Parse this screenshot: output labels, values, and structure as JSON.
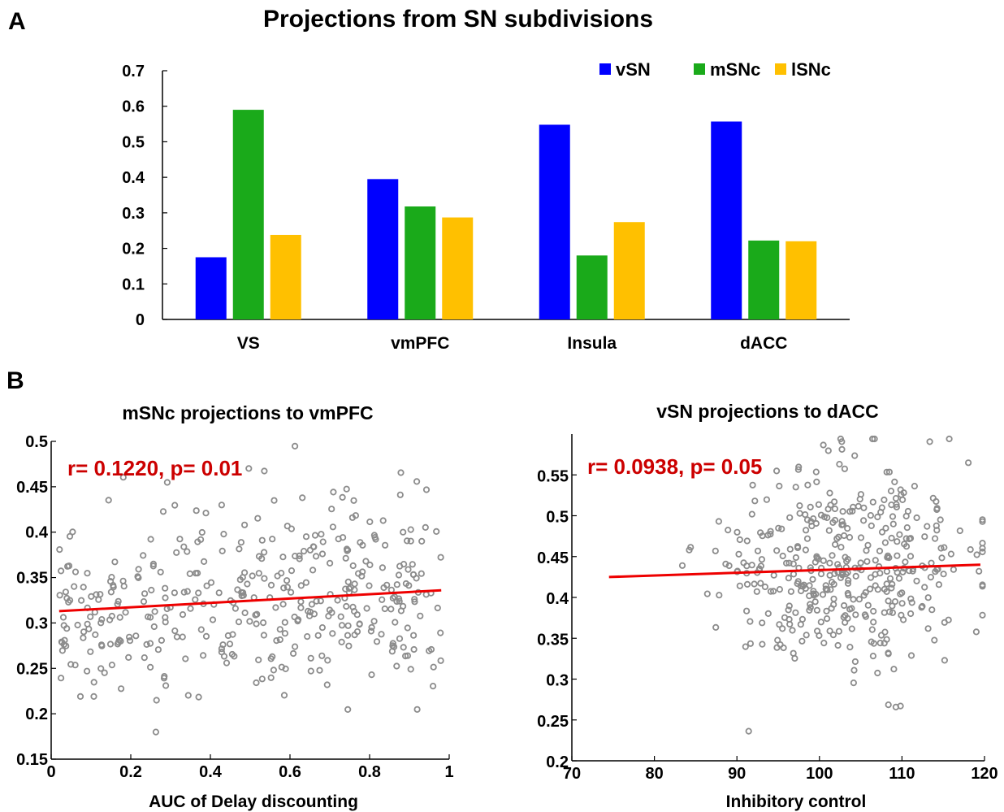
{
  "panel_labels": {
    "a": "A",
    "b": "B"
  },
  "colors": {
    "vSN": "#0000ff",
    "mSNc": "#1aaa1a",
    "lSNc": "#ffc000",
    "points": "#8c8c8c",
    "fit": "#ee0000",
    "stat": "#cc0000"
  },
  "chart_data": [
    {
      "type": "bar",
      "title": "Projections from SN subdivisions",
      "categories": [
        "VS",
        "vmPFC",
        "Insula",
        "dACC"
      ],
      "series": [
        {
          "name": "vSN",
          "values": [
            0.175,
            0.395,
            0.548,
            0.557
          ]
        },
        {
          "name": "mSNc",
          "values": [
            0.59,
            0.318,
            0.18,
            0.222
          ]
        },
        {
          "name": "lSNc",
          "values": [
            0.238,
            0.287,
            0.274,
            0.22
          ]
        }
      ],
      "ylim": [
        0,
        0.7
      ],
      "yticks": [
        "0",
        "0.1",
        "0.2",
        "0.3",
        "0.4",
        "0.5",
        "0.6",
        "0.7"
      ],
      "legend": "top-right",
      "legend_labels": [
        "vSN",
        "mSNc",
        "lSNc"
      ],
      "xlabel": "",
      "ylabel": ""
    },
    {
      "type": "scatter",
      "title": "mSNc projections to vmPFC",
      "xlabel": "AUC of Delay discounting",
      "ylabel": "",
      "xlim": [
        0,
        1
      ],
      "ylim": [
        0.15,
        0.5
      ],
      "xticks": [
        "0",
        "0.2",
        "0.4",
        "0.6",
        "0.8",
        "1"
      ],
      "yticks": [
        "0.15",
        "0.2",
        "0.25",
        "0.3",
        "0.35",
        "0.4",
        "0.45",
        "0.5"
      ],
      "annotation": "r= 0.1220, p= 0.01",
      "fit_line": {
        "x": [
          0.02,
          0.98
        ],
        "y": [
          0.313,
          0.336
        ]
      },
      "n_points": 400,
      "x_mean": 0.5,
      "y_mean": 0.305,
      "y_sd": 0.055
    },
    {
      "type": "scatter",
      "title": "vSN projections to dACC",
      "xlabel": "Inhibitory control",
      "ylabel": "",
      "xlim": [
        70,
        120
      ],
      "ylim": [
        0.2,
        0.6
      ],
      "xticks": [
        "70",
        "80",
        "90",
        "100",
        "110",
        "120"
      ],
      "yticks": [
        "0.2",
        "0.25",
        "0.3",
        "0.35",
        "0.4",
        "0.45",
        "0.5",
        "0.55"
      ],
      "annotation": "r= 0.0938, p= 0.05",
      "fit_line": {
        "x": [
          74.5,
          119.5
        ],
        "y": [
          0.425,
          0.44
        ]
      },
      "n_points": 400,
      "x_mean": 103,
      "x_sd": 8,
      "y_mean": 0.39,
      "y_sd": 0.06
    }
  ]
}
